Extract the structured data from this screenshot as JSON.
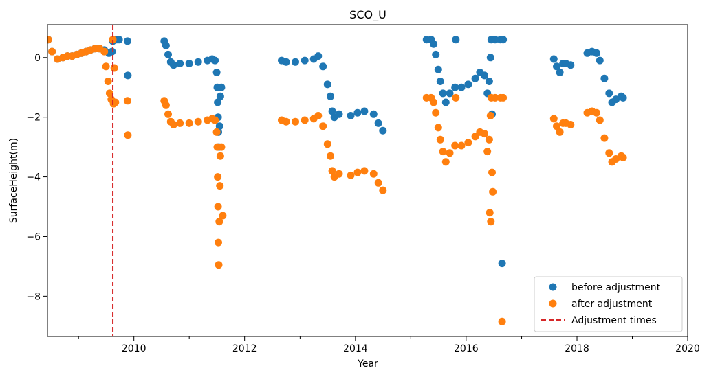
{
  "chart_data": {
    "type": "scatter",
    "title": "SCO_U",
    "xlabel": "Year",
    "ylabel": "SurfaceHeight(m)",
    "xlim": [
      "2008-06-10",
      "2020-01-01"
    ],
    "ylim": [
      -9.35,
      1.1
    ],
    "xticks": [
      "2010",
      "2012",
      "2014",
      "2016",
      "2018",
      "2020"
    ],
    "yticks": [
      "0",
      "−2",
      "−4",
      "−6",
      "−8"
    ],
    "grid": false,
    "legend_placement": "lower-right",
    "legend": [
      {
        "label": "before adjustment",
        "color": "#1f77b4",
        "kind": "marker"
      },
      {
        "label": "after adjustment",
        "color": "#ff7f0e",
        "kind": "marker"
      },
      {
        "label": "Adjustment times",
        "color": "#d62728",
        "kind": "dashed-line"
      }
    ],
    "adjustment_times": [
      "2009-08-15"
    ],
    "series": [
      {
        "name": "before adjustment",
        "color": "#1f77b4",
        "points": [
          [
            "2008-06-15",
            0.6
          ],
          [
            "2008-07-10",
            0.2
          ],
          [
            "2008-08-15",
            -0.05
          ],
          [
            "2008-09-20",
            0.0
          ],
          [
            "2008-10-20",
            0.05
          ],
          [
            "2008-11-20",
            0.05
          ],
          [
            "2008-12-20",
            0.1
          ],
          [
            "2009-01-20",
            0.15
          ],
          [
            "2009-02-20",
            0.2
          ],
          [
            "2009-03-20",
            0.25
          ],
          [
            "2009-04-20",
            0.3
          ],
          [
            "2009-05-20",
            0.3
          ],
          [
            "2009-06-20",
            0.25
          ],
          [
            "2009-07-20",
            0.15
          ],
          [
            "2009-08-10",
            0.2
          ],
          [
            "2009-08-15",
            0.55
          ],
          [
            "2009-09-10",
            0.6
          ],
          [
            "2009-09-25",
            0.6
          ],
          [
            "2009-11-20",
            0.55
          ],
          [
            "2009-11-22",
            -0.6
          ],
          [
            "2010-07-20",
            0.55
          ],
          [
            "2010-08-01",
            0.4
          ],
          [
            "2010-08-15",
            0.1
          ],
          [
            "2010-09-01",
            -0.15
          ],
          [
            "2010-09-20",
            -0.25
          ],
          [
            "2010-11-01",
            -0.2
          ],
          [
            "2011-01-01",
            -0.2
          ],
          [
            "2011-03-01",
            -0.15
          ],
          [
            "2011-05-01",
            -0.1
          ],
          [
            "2011-06-01",
            -0.05
          ],
          [
            "2011-06-20",
            -0.1
          ],
          [
            "2011-07-01",
            -0.5
          ],
          [
            "2011-07-05",
            -1.0
          ],
          [
            "2011-07-08",
            -1.5
          ],
          [
            "2011-07-10",
            -2.0
          ],
          [
            "2011-07-12",
            -2.5
          ],
          [
            "2011-07-15",
            -3.0
          ],
          [
            "2011-07-20",
            -2.3
          ],
          [
            "2011-07-25",
            -1.3
          ],
          [
            "2011-08-01",
            -1.0
          ],
          [
            "2012-09-01",
            -0.1
          ],
          [
            "2012-10-01",
            -0.15
          ],
          [
            "2012-12-01",
            -0.15
          ],
          [
            "2013-02-01",
            -0.1
          ],
          [
            "2013-04-01",
            -0.05
          ],
          [
            "2013-05-01",
            0.05
          ],
          [
            "2013-06-01",
            -0.3
          ],
          [
            "2013-07-01",
            -0.9
          ],
          [
            "2013-07-20",
            -1.3
          ],
          [
            "2013-08-01",
            -1.8
          ],
          [
            "2013-08-15",
            -2.0
          ],
          [
            "2013-09-15",
            -1.9
          ],
          [
            "2013-12-01",
            -1.95
          ],
          [
            "2014-01-15",
            -1.85
          ],
          [
            "2014-03-01",
            -1.8
          ],
          [
            "2014-05-01",
            -1.9
          ],
          [
            "2014-06-01",
            -2.2
          ],
          [
            "2014-07-01",
            -2.45
          ],
          [
            "2015-04-15",
            0.6
          ],
          [
            "2015-05-15",
            0.6
          ],
          [
            "2015-06-01",
            0.45
          ],
          [
            "2015-06-15",
            0.1
          ],
          [
            "2015-07-01",
            -0.4
          ],
          [
            "2015-07-15",
            -0.8
          ],
          [
            "2015-08-01",
            -1.2
          ],
          [
            "2015-08-20",
            -1.5
          ],
          [
            "2015-09-15",
            -1.2
          ],
          [
            "2015-10-20",
            -1.0
          ],
          [
            "2015-10-25",
            0.6
          ],
          [
            "2015-12-01",
            -1.0
          ],
          [
            "2016-01-15",
            -0.9
          ],
          [
            "2016-03-01",
            -0.7
          ],
          [
            "2016-04-01",
            -0.5
          ],
          [
            "2016-05-01",
            -0.6
          ],
          [
            "2016-05-20",
            -1.2
          ],
          [
            "2016-06-01",
            -0.8
          ],
          [
            "2016-06-10",
            0.0
          ],
          [
            "2016-06-15",
            0.6
          ],
          [
            "2016-06-20",
            -1.9
          ],
          [
            "2016-07-10",
            0.6
          ],
          [
            "2016-08-15",
            0.6
          ],
          [
            "2016-08-25",
            -6.9
          ],
          [
            "2016-09-01",
            0.6
          ],
          [
            "2017-08-01",
            -0.05
          ],
          [
            "2017-08-20",
            -0.3
          ],
          [
            "2017-09-10",
            -0.5
          ],
          [
            "2017-10-01",
            -0.2
          ],
          [
            "2017-10-20",
            -0.2
          ],
          [
            "2017-11-20",
            -0.25
          ],
          [
            "2018-03-10",
            0.15
          ],
          [
            "2018-04-10",
            0.2
          ],
          [
            "2018-05-10",
            0.15
          ],
          [
            "2018-06-01",
            -0.1
          ],
          [
            "2018-07-01",
            -0.7
          ],
          [
            "2018-08-01",
            -1.2
          ],
          [
            "2018-08-20",
            -1.5
          ],
          [
            "2018-09-15",
            -1.4
          ],
          [
            "2018-10-20",
            -1.3
          ],
          [
            "2018-11-01",
            -1.35
          ]
        ]
      },
      {
        "name": "after adjustment",
        "color": "#ff7f0e",
        "points": [
          [
            "2008-06-15",
            0.6
          ],
          [
            "2008-07-10",
            0.2
          ],
          [
            "2008-08-15",
            -0.05
          ],
          [
            "2008-09-20",
            0.0
          ],
          [
            "2008-10-20",
            0.05
          ],
          [
            "2008-11-20",
            0.05
          ],
          [
            "2008-12-20",
            0.1
          ],
          [
            "2009-01-20",
            0.15
          ],
          [
            "2009-02-20",
            0.2
          ],
          [
            "2009-03-20",
            0.25
          ],
          [
            "2009-04-20",
            0.3
          ],
          [
            "2009-05-20",
            0.3
          ],
          [
            "2009-06-20",
            0.2
          ],
          [
            "2009-07-01",
            -0.3
          ],
          [
            "2009-07-15",
            -0.8
          ],
          [
            "2009-07-25",
            -1.2
          ],
          [
            "2009-08-05",
            -1.4
          ],
          [
            "2009-08-20",
            -1.55
          ],
          [
            "2009-09-01",
            -1.5
          ],
          [
            "2009-08-15",
            0.6
          ],
          [
            "2009-08-25",
            -0.35
          ],
          [
            "2009-11-20",
            -1.45
          ],
          [
            "2009-11-22",
            -2.6
          ],
          [
            "2010-07-20",
            -1.45
          ],
          [
            "2010-08-01",
            -1.6
          ],
          [
            "2010-08-15",
            -1.9
          ],
          [
            "2010-09-01",
            -2.15
          ],
          [
            "2010-09-20",
            -2.25
          ],
          [
            "2010-11-01",
            -2.2
          ],
          [
            "2011-01-01",
            -2.2
          ],
          [
            "2011-03-01",
            -2.15
          ],
          [
            "2011-05-01",
            -2.1
          ],
          [
            "2011-06-01",
            -2.05
          ],
          [
            "2011-06-20",
            -2.1
          ],
          [
            "2011-07-01",
            -2.5
          ],
          [
            "2011-07-05",
            -3.0
          ],
          [
            "2011-07-08",
            -4.0
          ],
          [
            "2011-07-10",
            -5.0
          ],
          [
            "2011-07-12",
            -6.2
          ],
          [
            "2011-07-14",
            -6.95
          ],
          [
            "2011-07-18",
            -5.5
          ],
          [
            "2011-07-22",
            -4.3
          ],
          [
            "2011-07-25",
            -3.3
          ],
          [
            "2011-08-01",
            -3.0
          ],
          [
            "2011-08-10",
            -5.3
          ],
          [
            "2012-09-01",
            -2.1
          ],
          [
            "2012-10-01",
            -2.15
          ],
          [
            "2012-12-01",
            -2.15
          ],
          [
            "2013-02-01",
            -2.1
          ],
          [
            "2013-04-01",
            -2.05
          ],
          [
            "2013-05-01",
            -1.95
          ],
          [
            "2013-06-01",
            -2.3
          ],
          [
            "2013-07-01",
            -2.9
          ],
          [
            "2013-07-20",
            -3.3
          ],
          [
            "2013-08-01",
            -3.8
          ],
          [
            "2013-08-15",
            -4.0
          ],
          [
            "2013-09-15",
            -3.9
          ],
          [
            "2013-12-01",
            -3.95
          ],
          [
            "2014-01-15",
            -3.85
          ],
          [
            "2014-03-01",
            -3.8
          ],
          [
            "2014-05-01",
            -3.9
          ],
          [
            "2014-06-01",
            -4.2
          ],
          [
            "2014-07-01",
            -4.45
          ],
          [
            "2015-04-15",
            -1.35
          ],
          [
            "2015-05-15",
            -1.35
          ],
          [
            "2015-06-01",
            -1.5
          ],
          [
            "2015-06-15",
            -1.85
          ],
          [
            "2015-07-01",
            -2.35
          ],
          [
            "2015-07-15",
            -2.75
          ],
          [
            "2015-08-01",
            -3.15
          ],
          [
            "2015-08-20",
            -3.5
          ],
          [
            "2015-09-15",
            -3.2
          ],
          [
            "2015-10-20",
            -2.95
          ],
          [
            "2015-10-25",
            -1.35
          ],
          [
            "2015-12-01",
            -2.95
          ],
          [
            "2016-01-15",
            -2.85
          ],
          [
            "2016-03-01",
            -2.65
          ],
          [
            "2016-04-01",
            -2.5
          ],
          [
            "2016-05-01",
            -2.55
          ],
          [
            "2016-05-20",
            -3.15
          ],
          [
            "2016-06-01",
            -2.75
          ],
          [
            "2016-06-05",
            -5.2
          ],
          [
            "2016-06-10",
            -1.95
          ],
          [
            "2016-06-12",
            -5.5
          ],
          [
            "2016-06-15",
            -1.35
          ],
          [
            "2016-06-20",
            -3.85
          ],
          [
            "2016-06-25",
            -4.5
          ],
          [
            "2016-07-10",
            -1.35
          ],
          [
            "2016-08-15",
            -1.35
          ],
          [
            "2016-08-25",
            -8.85
          ],
          [
            "2016-09-01",
            -1.35
          ],
          [
            "2017-08-01",
            -2.05
          ],
          [
            "2017-08-20",
            -2.3
          ],
          [
            "2017-09-10",
            -2.5
          ],
          [
            "2017-10-01",
            -2.2
          ],
          [
            "2017-10-20",
            -2.2
          ],
          [
            "2017-11-20",
            -2.25
          ],
          [
            "2018-03-10",
            -1.85
          ],
          [
            "2018-04-10",
            -1.8
          ],
          [
            "2018-05-10",
            -1.85
          ],
          [
            "2018-06-01",
            -2.1
          ],
          [
            "2018-07-01",
            -2.7
          ],
          [
            "2018-08-01",
            -3.2
          ],
          [
            "2018-08-20",
            -3.5
          ],
          [
            "2018-09-15",
            -3.4
          ],
          [
            "2018-10-20",
            -3.3
          ],
          [
            "2018-11-01",
            -3.35
          ]
        ]
      }
    ]
  }
}
